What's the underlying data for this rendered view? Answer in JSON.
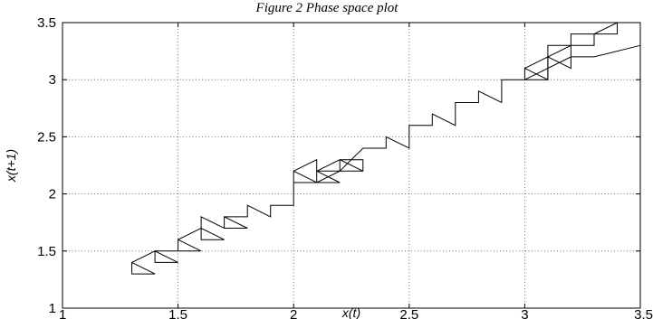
{
  "caption": "Figure 2 Phase space plot",
  "chart_data": {
    "type": "line",
    "title": "",
    "xlabel": "x(t)",
    "ylabel": "x(t+1)",
    "xlim": [
      1,
      3.5
    ],
    "ylim": [
      1,
      3.5
    ],
    "x_ticks": [
      "1",
      "1.5",
      "2",
      "2.5",
      "3",
      "3.5"
    ],
    "y_ticks": [
      "1",
      "1.5",
      "2",
      "2.5",
      "3",
      "3.5"
    ],
    "grid": true,
    "series": [
      {
        "color": "#000000",
        "points": [
          [
            1.3,
            1.4
          ],
          [
            1.4,
            1.3
          ],
          [
            1.3,
            1.3
          ],
          [
            1.3,
            1.4
          ],
          [
            1.4,
            1.5
          ],
          [
            1.5,
            1.4
          ],
          [
            1.4,
            1.4
          ],
          [
            1.4,
            1.5
          ],
          [
            1.5,
            1.5
          ],
          [
            1.5,
            1.6
          ],
          [
            1.6,
            1.5
          ],
          [
            1.5,
            1.5
          ],
          [
            1.5,
            1.6
          ],
          [
            1.6,
            1.7
          ],
          [
            1.7,
            1.6
          ],
          [
            1.6,
            1.6
          ],
          [
            1.6,
            1.8
          ],
          [
            1.7,
            1.7
          ],
          [
            1.7,
            1.8
          ],
          [
            1.8,
            1.7
          ],
          [
            1.7,
            1.7
          ],
          [
            1.7,
            1.8
          ],
          [
            1.8,
            1.8
          ],
          [
            1.8,
            1.9
          ],
          [
            1.9,
            1.8
          ],
          [
            1.9,
            1.9
          ],
          [
            2.0,
            1.9
          ],
          [
            2.0,
            2.2
          ],
          [
            2.1,
            2.1
          ],
          [
            2.1,
            2.2
          ],
          [
            2.2,
            2.1
          ],
          [
            2.1,
            2.1
          ],
          [
            2.1,
            2.2
          ],
          [
            2.2,
            2.3
          ],
          [
            2.3,
            2.2
          ],
          [
            2.2,
            2.2
          ],
          [
            2.2,
            2.3
          ],
          [
            2.3,
            2.3
          ],
          [
            2.3,
            2.2
          ],
          [
            2.2,
            2.2
          ],
          [
            2.1,
            2.1
          ],
          [
            2.0,
            2.1
          ],
          [
            2.0,
            2.2
          ],
          [
            2.1,
            2.3
          ],
          [
            2.1,
            2.2
          ],
          [
            2.2,
            2.2
          ],
          [
            2.3,
            2.4
          ],
          [
            2.4,
            2.4
          ],
          [
            2.4,
            2.5
          ],
          [
            2.5,
            2.4
          ],
          [
            2.5,
            2.6
          ],
          [
            2.6,
            2.6
          ],
          [
            2.6,
            2.7
          ],
          [
            2.7,
            2.6
          ],
          [
            2.7,
            2.8
          ],
          [
            2.8,
            2.8
          ],
          [
            2.8,
            2.9
          ],
          [
            2.9,
            2.8
          ],
          [
            2.9,
            3.0
          ],
          [
            3.0,
            3.0
          ],
          [
            3.0,
            3.1
          ],
          [
            3.1,
            3.0
          ],
          [
            3.1,
            3.2
          ],
          [
            3.2,
            3.1
          ],
          [
            3.2,
            3.3
          ],
          [
            3.1,
            3.2
          ],
          [
            3.1,
            3.3
          ],
          [
            3.3,
            3.3
          ],
          [
            3.3,
            3.4
          ],
          [
            3.4,
            3.4
          ],
          [
            3.4,
            3.5
          ],
          [
            3.5,
            3.5
          ]
        ]
      },
      {
        "color": "#000000",
        "points": [
          [
            3.0,
            3.1
          ],
          [
            3.1,
            3.2
          ],
          [
            3.1,
            3.0
          ],
          [
            3.0,
            3.0
          ],
          [
            3.2,
            3.2
          ],
          [
            3.3,
            3.2
          ],
          [
            3.5,
            3.3
          ]
        ]
      },
      {
        "color": "#000000",
        "points": [
          [
            3.2,
            3.3
          ],
          [
            3.2,
            3.4
          ],
          [
            3.3,
            3.4
          ],
          [
            3.4,
            3.5
          ],
          [
            3.4,
            3.4
          ]
        ]
      }
    ]
  }
}
